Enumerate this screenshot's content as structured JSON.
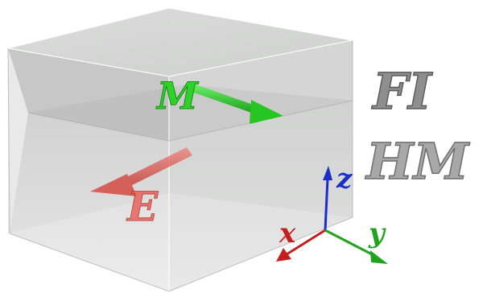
{
  "layers": [
    {
      "label": "FI",
      "color": "#8e8e8e"
    },
    {
      "label": "HM",
      "color": "#a8a8a8"
    }
  ],
  "vectors": {
    "magnetization": {
      "label": "M",
      "color": "#25c21f"
    },
    "electric_field": {
      "label": "E",
      "color": "#e24a44"
    }
  },
  "axes": {
    "x": {
      "label": "x",
      "color": "#c41e1e"
    },
    "y": {
      "label": "y",
      "color": "#22a31d"
    },
    "z": {
      "label": "z",
      "color": "#1b2fc7"
    }
  }
}
